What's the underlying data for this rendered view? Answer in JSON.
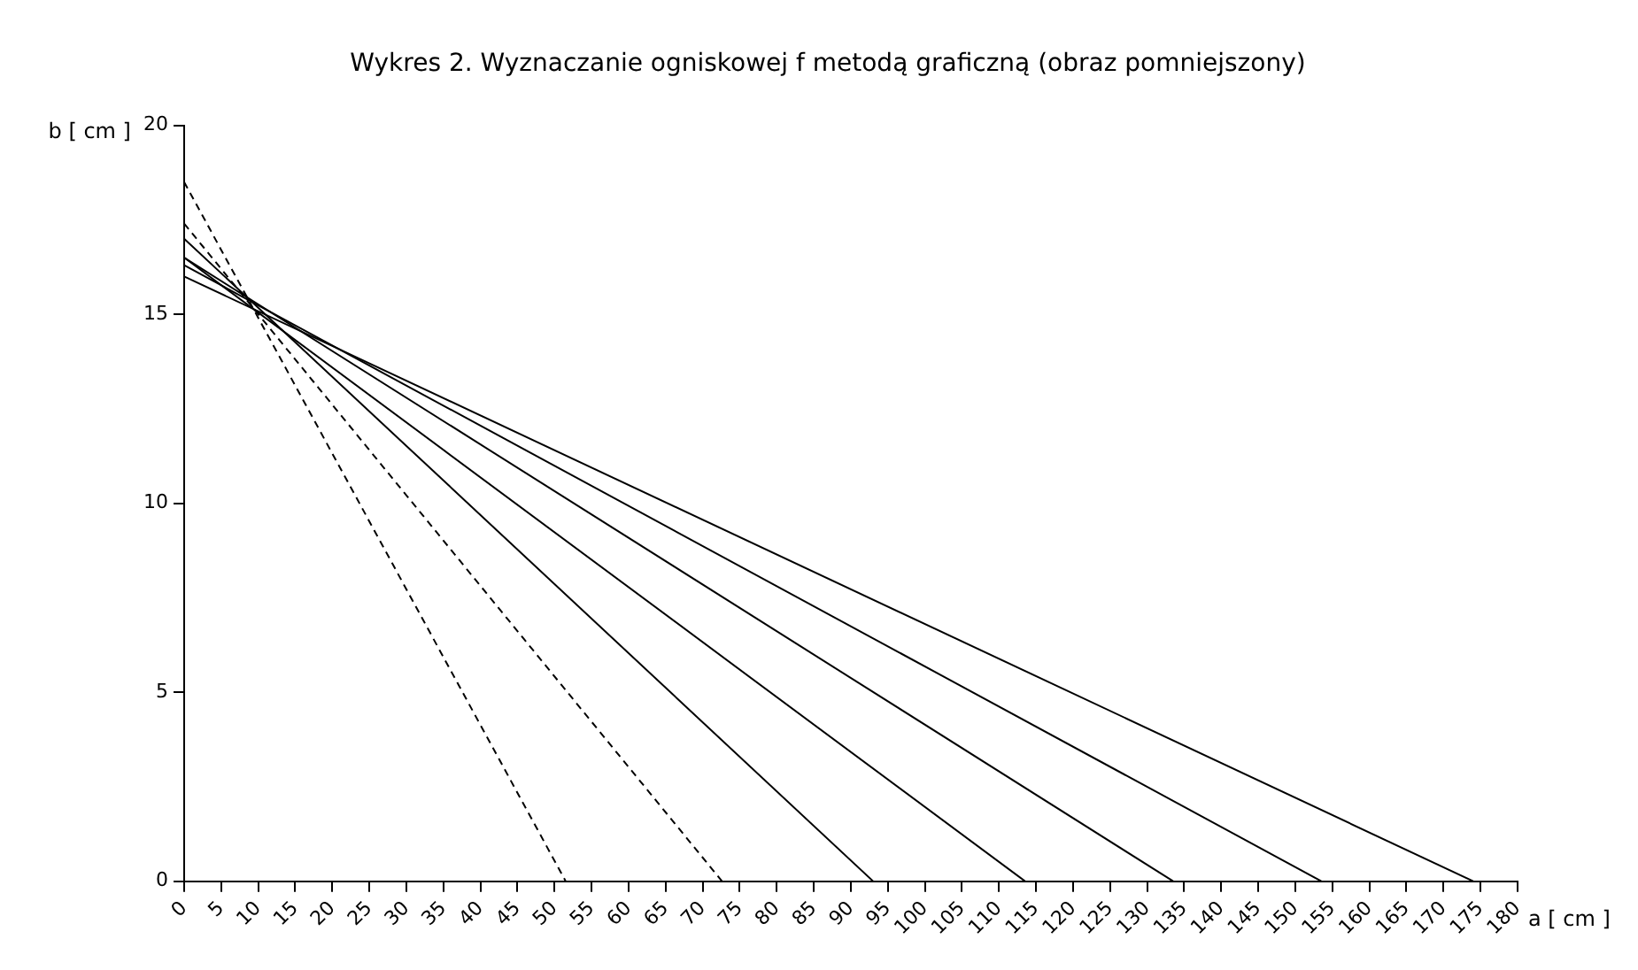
{
  "chart_data": {
    "type": "line",
    "title": "Wykres 2. Wyznaczanie ogniskowej f metodą graficzną (obraz pomniejszony)",
    "xlabel": "a [ cm ]",
    "ylabel": "b [ cm ]",
    "xlim": [
      0,
      180
    ],
    "ylim": [
      0,
      20
    ],
    "xticks": [
      0,
      5,
      10,
      15,
      20,
      25,
      30,
      35,
      40,
      45,
      50,
      55,
      60,
      65,
      70,
      75,
      80,
      85,
      90,
      95,
      100,
      105,
      110,
      115,
      120,
      125,
      130,
      135,
      140,
      145,
      150,
      155,
      160,
      165,
      170,
      175,
      180
    ],
    "yticks": [
      0,
      5,
      10,
      15,
      20
    ],
    "grid": false,
    "legend": false,
    "marker": "none",
    "series": [
      {
        "color": "#000000",
        "line_style": "dashed",
        "x": [
          0,
          51.5
        ],
        "values": [
          18.5,
          0
        ]
      },
      {
        "color": "#000000",
        "line_style": "dashed",
        "x": [
          0,
          72.6
        ],
        "values": [
          17.4,
          0
        ]
      },
      {
        "color": "#000000",
        "line_style": "solid",
        "x": [
          0,
          93
        ],
        "values": [
          17.0,
          0
        ]
      },
      {
        "color": "#000000",
        "line_style": "solid",
        "x": [
          0,
          113.5
        ],
        "values": [
          16.5,
          0
        ]
      },
      {
        "color": "#000000",
        "line_style": "solid",
        "x": [
          0,
          133.5
        ],
        "values": [
          16.5,
          0
        ]
      },
      {
        "color": "#000000",
        "line_style": "solid",
        "x": [
          0,
          153.5
        ],
        "values": [
          16.3,
          0
        ]
      },
      {
        "color": "#000000",
        "line_style": "solid",
        "x": [
          0,
          174
        ],
        "values": [
          16.0,
          0
        ]
      }
    ]
  }
}
